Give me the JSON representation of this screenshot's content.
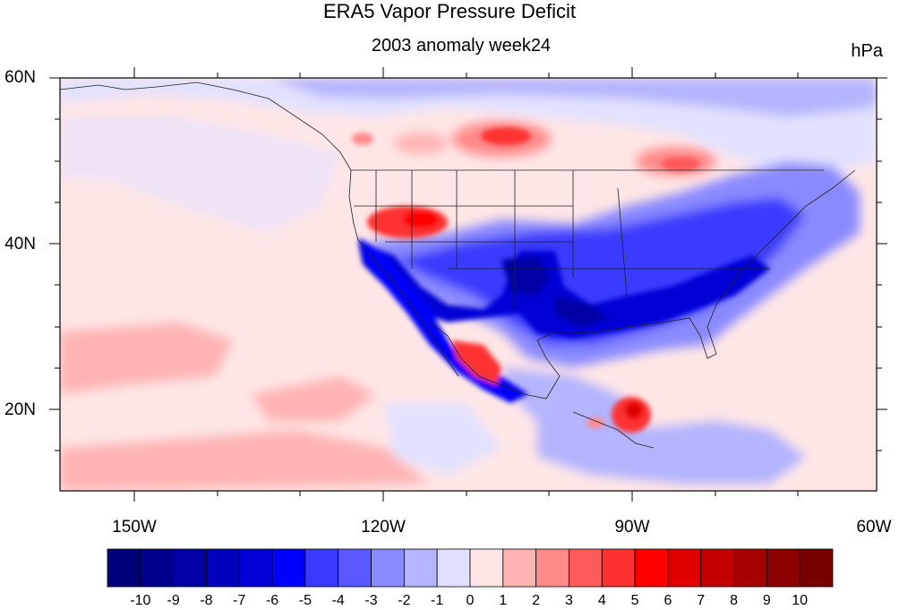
{
  "figure": {
    "title": "ERA5 Vapor Pressure Deficit",
    "subtitle": "2003 anomaly week24",
    "units": "hPa"
  },
  "map": {
    "lat_ticks": [
      {
        "label": "60N",
        "value": 60
      },
      {
        "label": "40N",
        "value": 40
      },
      {
        "label": "20N",
        "value": 20
      }
    ],
    "lon_ticks": [
      {
        "label": "150W",
        "value": -150
      },
      {
        "label": "120W",
        "value": -120
      },
      {
        "label": "90W",
        "value": -90
      },
      {
        "label": "60W",
        "value": -60
      }
    ],
    "lon_range": [
      -159,
      -61
    ],
    "lat_range": [
      10,
      60
    ]
  },
  "colorbar": {
    "labels": [
      "-10",
      "-9",
      "-8",
      "-7",
      "-6",
      "-5",
      "-4",
      "-3",
      "-2",
      "-1",
      "0",
      "1",
      "2",
      "3",
      "4",
      "5",
      "6",
      "7",
      "8",
      "9",
      "10"
    ],
    "colors": [
      "#00007a",
      "#00008e",
      "#0000a5",
      "#0000bd",
      "#0000d6",
      "#0000ff",
      "#3a3aff",
      "#5959ff",
      "#8a8aff",
      "#b4b4ff",
      "#e1e1ff",
      "#ffe6e6",
      "#ffb3b3",
      "#ff8a8a",
      "#ff5a5a",
      "#ff3030",
      "#ff0000",
      "#e00000",
      "#c40000",
      "#a60000",
      "#8c0000",
      "#7a0000"
    ]
  }
}
